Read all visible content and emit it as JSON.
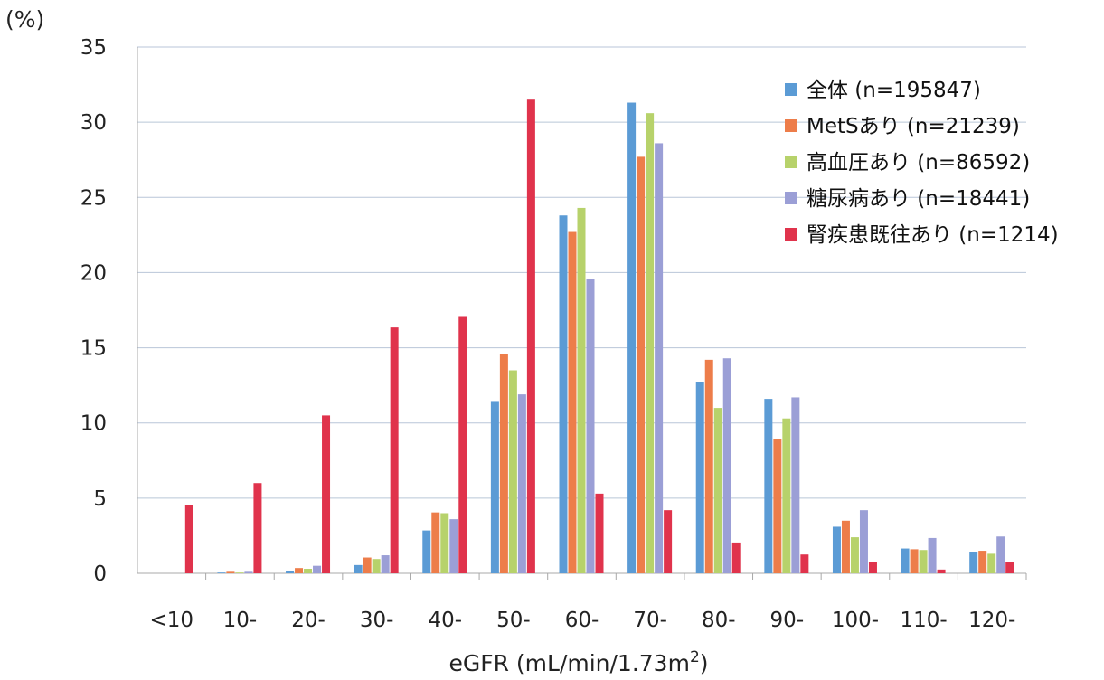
{
  "chart_data": {
    "type": "bar",
    "y_unit_label": "(%)",
    "xlabel": "eGFR (mL/min/1.73m²)",
    "ylabel": "",
    "ylim": [
      0,
      35
    ],
    "yticks": [
      0,
      5,
      10,
      15,
      20,
      25,
      30,
      35
    ],
    "grid": true,
    "legend_position": "top-right",
    "categories": [
      "<10",
      "10-",
      "20-",
      "30-",
      "40-",
      "50-",
      "60-",
      "70-",
      "80-",
      "90-",
      "100-",
      "110-",
      "120-"
    ],
    "series": [
      {
        "name": "全体 (n=195847)",
        "color": "#5b9bd5",
        "values": [
          0.0,
          0.05,
          0.15,
          0.55,
          2.85,
          11.4,
          23.8,
          31.3,
          12.7,
          11.6,
          3.1,
          1.65,
          1.4
        ]
      },
      {
        "name": "MetSあり (n=21239)",
        "color": "#ed7d4a",
        "values": [
          0.0,
          0.1,
          0.35,
          1.05,
          4.05,
          14.6,
          22.7,
          27.7,
          14.2,
          8.9,
          3.5,
          1.6,
          1.5
        ]
      },
      {
        "name": "高血圧あり (n=86592)",
        "color": "#b7d26b",
        "values": [
          0.0,
          0.05,
          0.3,
          0.95,
          4.0,
          13.5,
          24.3,
          30.6,
          11.0,
          10.3,
          2.4,
          1.55,
          1.3
        ]
      },
      {
        "name": "糖尿病あり (n=18441)",
        "color": "#9b9fd6",
        "values": [
          0.0,
          0.1,
          0.5,
          1.2,
          3.6,
          11.9,
          19.6,
          28.6,
          14.3,
          11.7,
          4.2,
          2.35,
          2.45
        ]
      },
      {
        "name": "腎疾患既往あり (n=1214)",
        "color": "#e0334c",
        "values": [
          4.55,
          6.0,
          10.5,
          16.35,
          17.05,
          31.5,
          5.3,
          4.2,
          2.05,
          1.25,
          0.75,
          0.25,
          0.75
        ]
      }
    ]
  }
}
